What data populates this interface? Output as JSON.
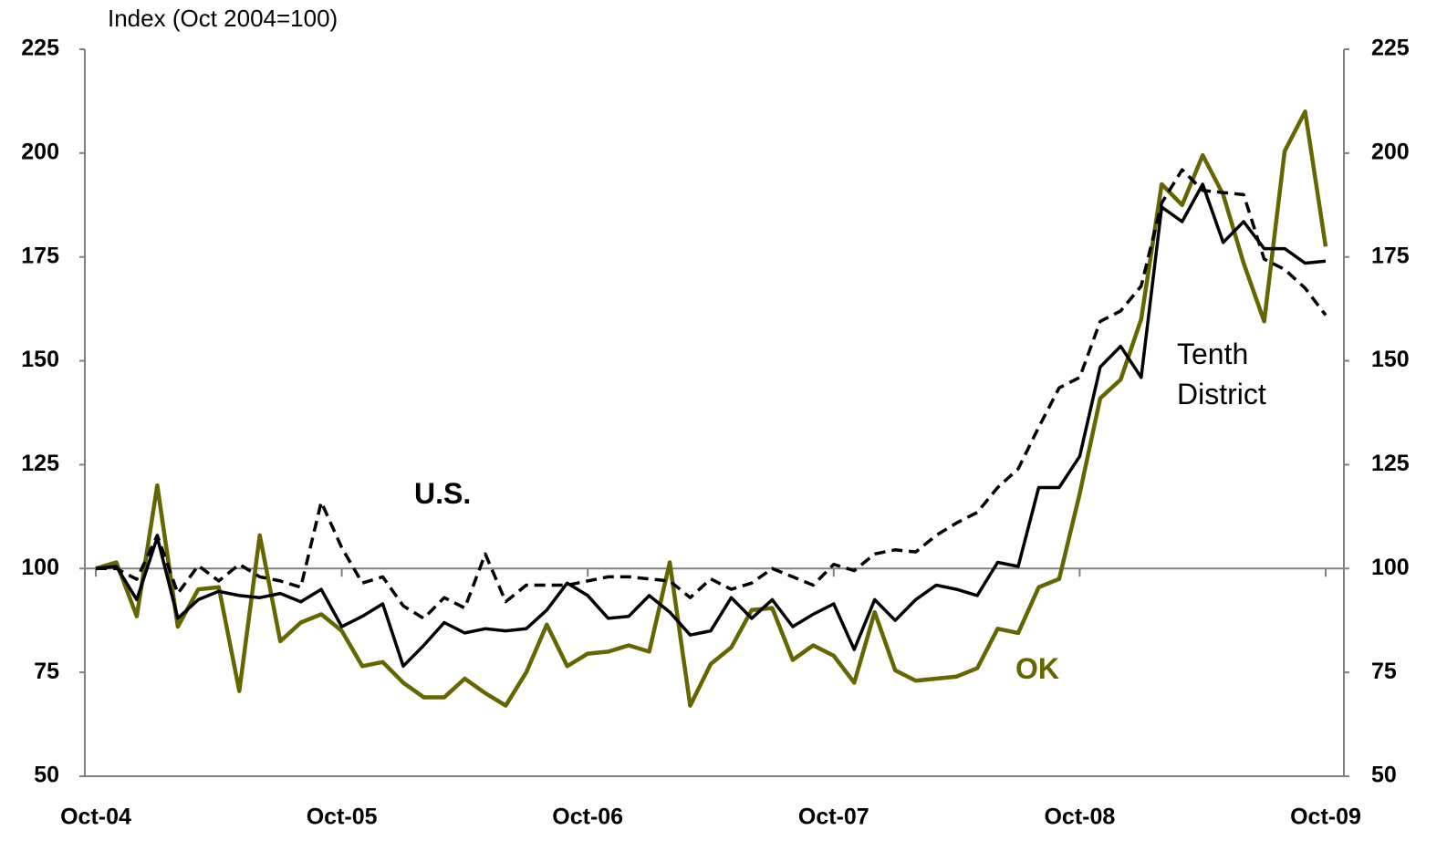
{
  "chart_data": {
    "type": "line",
    "axis_label": "Index (Oct 2004=100)",
    "categories": [
      "Oct-04",
      null,
      null,
      null,
      null,
      null,
      null,
      null,
      null,
      null,
      null,
      null,
      "Oct-05",
      null,
      null,
      null,
      null,
      null,
      null,
      null,
      null,
      null,
      null,
      null,
      "Oct-06",
      null,
      null,
      null,
      null,
      null,
      null,
      null,
      null,
      null,
      null,
      null,
      "Oct-07",
      null,
      null,
      null,
      null,
      null,
      null,
      null,
      null,
      null,
      null,
      null,
      "Oct-08",
      null,
      null,
      null,
      null,
      null,
      null,
      null,
      null,
      null,
      null,
      null,
      "Oct-09"
    ],
    "series": [
      {
        "name": "OK",
        "color": "#666600",
        "dashed": false,
        "values": [
          100,
          101.5,
          88.5,
          120,
          86,
          95,
          95.5,
          70.5,
          108,
          82.5,
          87,
          89,
          85,
          76.5,
          77.5,
          72.5,
          69,
          69,
          73.5,
          70,
          67,
          75,
          86.5,
          76.5,
          79.5,
          80,
          81.5,
          80,
          101.5,
          67,
          77,
          81,
          90,
          90.5,
          78,
          81.5,
          79,
          72.5,
          89.5,
          75.5,
          73,
          73.5,
          74,
          76,
          85.5,
          84.5,
          95.5,
          97.5,
          118,
          141,
          145.5,
          160,
          192.5,
          187.5,
          199.5,
          190,
          173.5,
          159.5,
          200.5,
          210,
          177.5
        ]
      },
      {
        "name": "U.S.",
        "color": "#000000",
        "dashed": true,
        "values": [
          100,
          100,
          97.4,
          108,
          94,
          100.7,
          97,
          101,
          98,
          97,
          95.5,
          116,
          105,
          96.5,
          98,
          91,
          88,
          93,
          90.5,
          103.5,
          92,
          96,
          96,
          96,
          97,
          98,
          98,
          97.5,
          97,
          93,
          97.5,
          95,
          96.5,
          100,
          98,
          96,
          101,
          99.5,
          103.5,
          104.5,
          104,
          108,
          111,
          113.5,
          119.5,
          124,
          134,
          143.5,
          146,
          159.5,
          162,
          168,
          188,
          196,
          191,
          190.5,
          190,
          174.5,
          172,
          167.5,
          161
        ]
      },
      {
        "name": "Tenth District",
        "color": "#000000",
        "dashed": false,
        "values": [
          100,
          100.5,
          92.5,
          107.5,
          88,
          92.5,
          94.5,
          93.5,
          93,
          94,
          92,
          95,
          86,
          88.5,
          91.5,
          76.5,
          81.5,
          87,
          84.5,
          85.5,
          85,
          85.5,
          90,
          96.5,
          93.5,
          88,
          88.5,
          93.5,
          89.5,
          84,
          85,
          93,
          88,
          92.5,
          86,
          89,
          91.5,
          80.5,
          92.5,
          87.5,
          92.5,
          96,
          95,
          93.5,
          101.5,
          100.5,
          119.5,
          119.5,
          127,
          148.5,
          153.5,
          146,
          187,
          183.5,
          192.5,
          178.5,
          183.5,
          177,
          177,
          173.5,
          174
        ]
      }
    ],
    "ylim": [
      50,
      225
    ],
    "yticks": [
      50,
      75,
      100,
      125,
      150,
      175,
      200,
      225
    ],
    "y2lim": [
      50,
      225
    ],
    "y2ticks": [
      50,
      75,
      100,
      125,
      150,
      175,
      200,
      225
    ],
    "x_axis_crosses_at": 100
  }
}
